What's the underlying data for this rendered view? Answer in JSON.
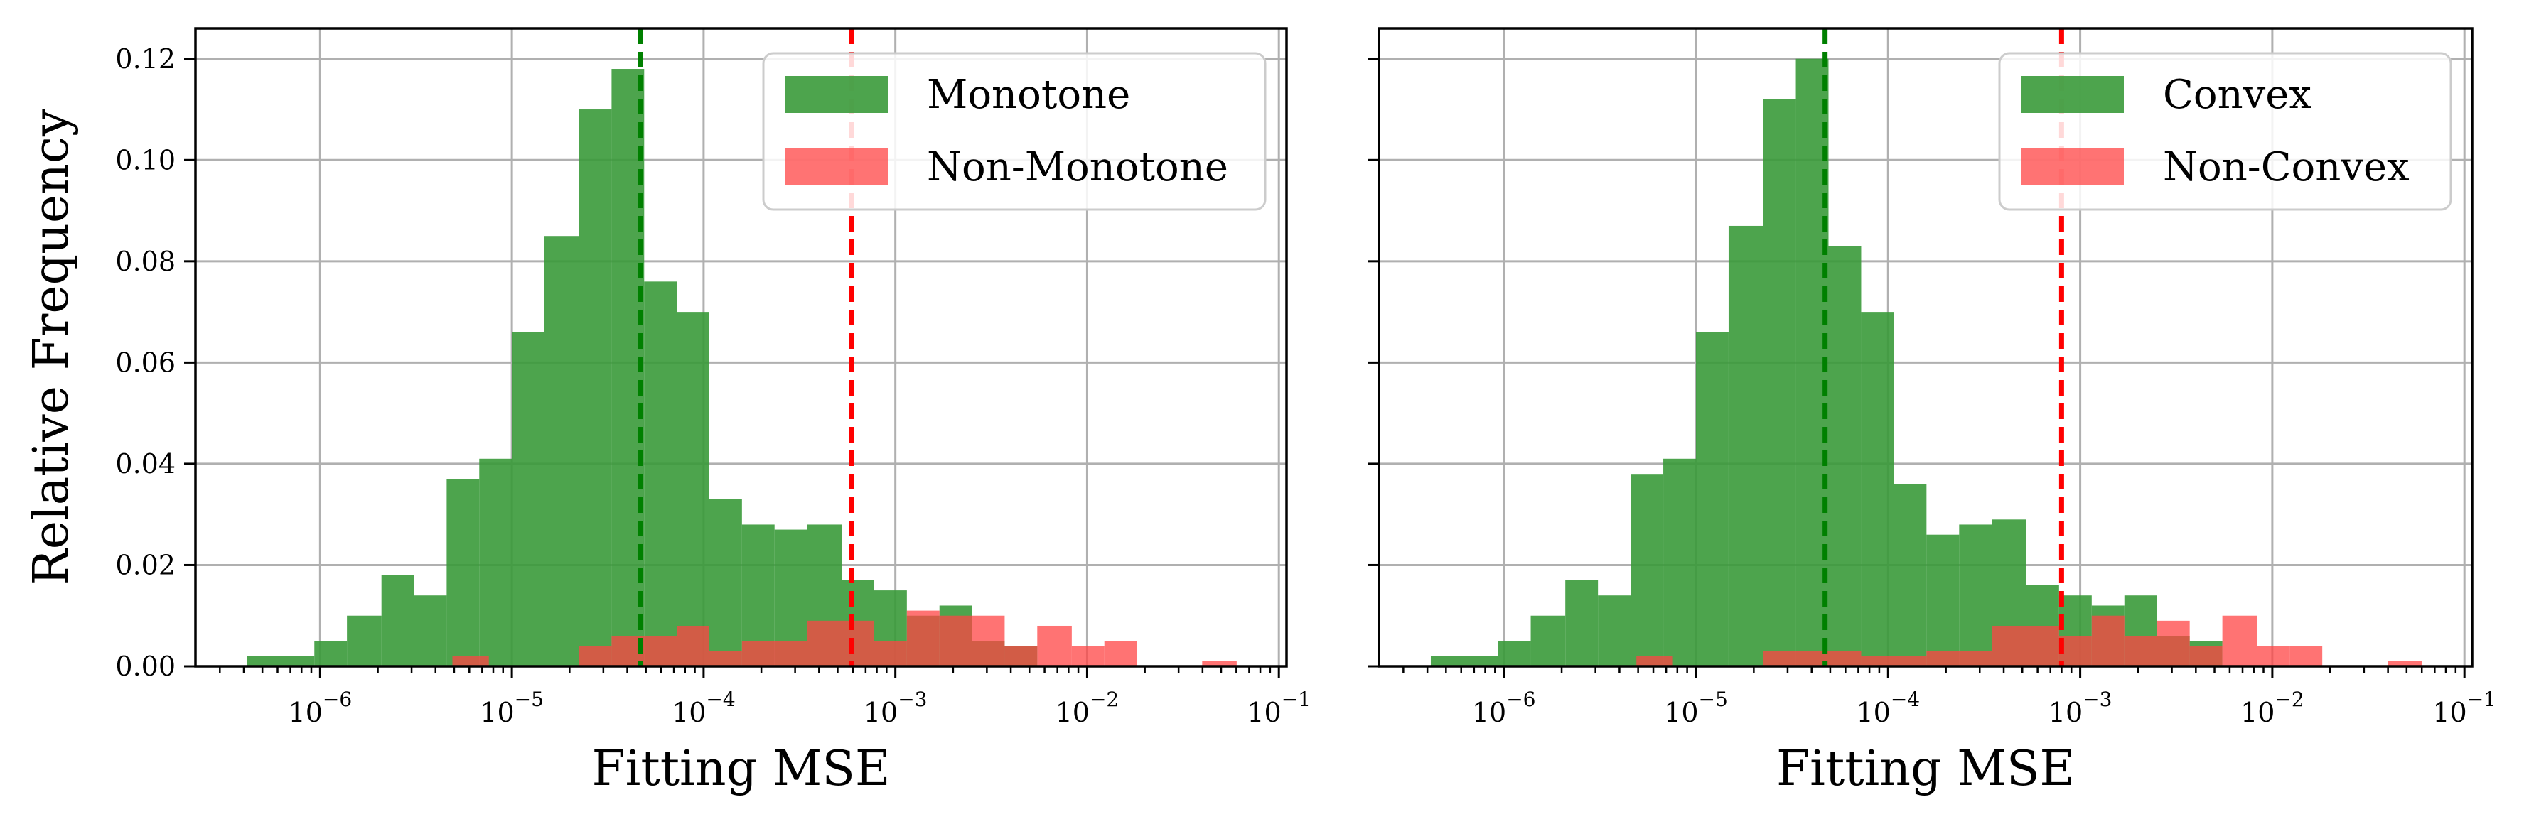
{
  "chart_data": [
    {
      "type": "bar",
      "xlabel": "Fitting MSE",
      "ylabel": "Relative Frequency",
      "xscale": "log",
      "xlim_exp": [
        -6.65,
        -0.96
      ],
      "ylim": [
        0,
        0.126
      ],
      "yticks": [
        "0.00",
        "0.02",
        "0.04",
        "0.06",
        "0.08",
        "0.10",
        "0.12"
      ],
      "xtick_exponents": [
        "−6",
        "−5",
        "−4",
        "−3",
        "−2",
        "−1"
      ],
      "grid": true,
      "legend_position": "top-right",
      "median_lines": [
        {
          "series": "Monotone",
          "x": 4.7e-05,
          "color": "#008000"
        },
        {
          "series": "Non-Monotone",
          "x": 0.00059,
          "color": "#ff0000"
        }
      ],
      "series": [
        {
          "name": "Monotone",
          "color": "#3a9a3a",
          "bins": [
            [
              -6.38,
              -6.03,
              0.002
            ],
            [
              -6.03,
              -5.86,
              0.005
            ],
            [
              -5.86,
              -5.68,
              0.01
            ],
            [
              -5.68,
              -5.51,
              0.018
            ],
            [
              -5.51,
              -5.34,
              0.014
            ],
            [
              -5.34,
              -5.17,
              0.037
            ],
            [
              -5.17,
              -5.0,
              0.041
            ],
            [
              -5.0,
              -4.83,
              0.066
            ],
            [
              -4.83,
              -4.65,
              0.085
            ],
            [
              -4.65,
              -4.48,
              0.11
            ],
            [
              -4.48,
              -4.31,
              0.118
            ],
            [
              -4.31,
              -4.14,
              0.076
            ],
            [
              -4.14,
              -3.97,
              0.07
            ],
            [
              -3.97,
              -3.8,
              0.033
            ],
            [
              -3.8,
              -3.63,
              0.028
            ],
            [
              -3.63,
              -3.46,
              0.027
            ],
            [
              -3.46,
              -3.28,
              0.028
            ],
            [
              -3.28,
              -3.11,
              0.017
            ],
            [
              -3.11,
              -2.94,
              0.015
            ],
            [
              -2.94,
              -2.77,
              0.01
            ],
            [
              -2.77,
              -2.6,
              0.012
            ],
            [
              -2.6,
              -2.43,
              0.005
            ],
            [
              -2.43,
              -2.26,
              0.004
            ]
          ]
        },
        {
          "name": "Non-Monotone",
          "color": "#ff4444",
          "bins": [
            [
              -5.31,
              -5.12,
              0.002
            ],
            [
              -4.65,
              -4.48,
              0.004
            ],
            [
              -4.48,
              -4.14,
              0.006
            ],
            [
              -4.14,
              -3.97,
              0.008
            ],
            [
              -3.97,
              -3.8,
              0.003
            ],
            [
              -3.8,
              -3.46,
              0.005
            ],
            [
              -3.46,
              -3.11,
              0.009
            ],
            [
              -3.11,
              -2.94,
              0.005
            ],
            [
              -2.94,
              -2.77,
              0.011
            ],
            [
              -2.77,
              -2.43,
              0.01
            ],
            [
              -2.43,
              -2.26,
              0.004
            ],
            [
              -2.26,
              -2.08,
              0.008
            ],
            [
              -2.08,
              -1.91,
              0.004
            ],
            [
              -1.91,
              -1.74,
              0.005
            ],
            [
              -1.4,
              -1.22,
              0.001
            ]
          ]
        }
      ]
    },
    {
      "type": "bar",
      "xlabel": "Fitting MSE",
      "ylabel": "",
      "xscale": "log",
      "xlim_exp": [
        -6.65,
        -0.96
      ],
      "ylim": [
        0,
        0.126
      ],
      "yticks": [],
      "xtick_exponents": [
        "−6",
        "−5",
        "−4",
        "−3",
        "−2",
        "−1"
      ],
      "grid": true,
      "legend_position": "top-right",
      "median_lines": [
        {
          "series": "Convex",
          "x": 4.7e-05,
          "color": "#008000"
        },
        {
          "series": "Non-Convex",
          "x": 0.0008,
          "color": "#ff0000"
        }
      ],
      "series": [
        {
          "name": "Convex",
          "color": "#3a9a3a",
          "bins": [
            [
              -6.38,
              -6.03,
              0.002
            ],
            [
              -6.03,
              -5.86,
              0.005
            ],
            [
              -5.86,
              -5.68,
              0.01
            ],
            [
              -5.68,
              -5.51,
              0.017
            ],
            [
              -5.51,
              -5.34,
              0.014
            ],
            [
              -5.34,
              -5.17,
              0.038
            ],
            [
              -5.17,
              -5.0,
              0.041
            ],
            [
              -5.0,
              -4.83,
              0.066
            ],
            [
              -4.83,
              -4.65,
              0.087
            ],
            [
              -4.65,
              -4.48,
              0.112
            ],
            [
              -4.48,
              -4.31,
              0.12
            ],
            [
              -4.31,
              -4.14,
              0.083
            ],
            [
              -4.14,
              -3.97,
              0.07
            ],
            [
              -3.97,
              -3.8,
              0.036
            ],
            [
              -3.8,
              -3.63,
              0.026
            ],
            [
              -3.63,
              -3.46,
              0.028
            ],
            [
              -3.46,
              -3.28,
              0.029
            ],
            [
              -3.28,
              -3.11,
              0.016
            ],
            [
              -3.11,
              -2.94,
              0.014
            ],
            [
              -2.94,
              -2.77,
              0.012
            ],
            [
              -2.77,
              -2.6,
              0.014
            ],
            [
              -2.6,
              -2.43,
              0.006
            ],
            [
              -2.43,
              -2.26,
              0.005
            ]
          ]
        },
        {
          "name": "Non-Convex",
          "color": "#ff4444",
          "bins": [
            [
              -5.31,
              -5.12,
              0.002
            ],
            [
              -4.65,
              -4.31,
              0.003
            ],
            [
              -4.31,
              -4.14,
              0.003
            ],
            [
              -4.14,
              -3.8,
              0.002
            ],
            [
              -3.8,
              -3.46,
              0.003
            ],
            [
              -3.46,
              -3.11,
              0.008
            ],
            [
              -3.11,
              -2.94,
              0.006
            ],
            [
              -2.94,
              -2.77,
              0.01
            ],
            [
              -2.77,
              -2.6,
              0.006
            ],
            [
              -2.6,
              -2.43,
              0.009
            ],
            [
              -2.43,
              -2.26,
              0.004
            ],
            [
              -2.26,
              -2.08,
              0.01
            ],
            [
              -2.08,
              -1.91,
              0.004
            ],
            [
              -1.91,
              -1.74,
              0.004
            ],
            [
              -1.4,
              -1.22,
              0.001
            ]
          ]
        }
      ]
    }
  ]
}
